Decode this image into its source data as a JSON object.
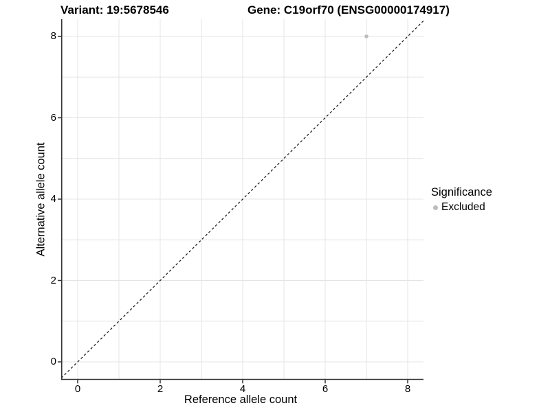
{
  "titles": {
    "variant": "Variant: 19:5678546",
    "gene": "Gene: C19orf70 (ENSG00000174917)"
  },
  "chart_data": {
    "type": "scatter",
    "title_left": "Variant: 19:5678546",
    "title_right": "Gene: C19orf70 (ENSG00000174917)",
    "xlabel": "Reference allele count",
    "ylabel": "Alternative allele count",
    "x_ticks": [
      0,
      2,
      4,
      6,
      8
    ],
    "y_ticks": [
      0,
      2,
      4,
      6,
      8
    ],
    "xlim": [
      -0.42,
      8.42
    ],
    "ylim": [
      -0.42,
      8.42
    ],
    "grid": true,
    "gridline_interval": 1,
    "series": [
      {
        "name": "Excluded",
        "color": "#bdbdbd",
        "points": [
          {
            "x": 7,
            "y": 8
          }
        ]
      }
    ],
    "reference_line": {
      "type": "identity",
      "equation": "y = x",
      "style": "dashed",
      "color": "#1a1a1a"
    },
    "legend": {
      "title": "Significance",
      "position": "right",
      "entries": [
        {
          "label": "Excluded",
          "color": "#bdbdbd"
        }
      ]
    }
  },
  "colors": {
    "background": "#ffffff",
    "gridline": "#e4e4e4",
    "axis_line": "#333333",
    "point": "#bdbdbd",
    "dashed_line": "#1a1a1a",
    "text": "#000000"
  }
}
